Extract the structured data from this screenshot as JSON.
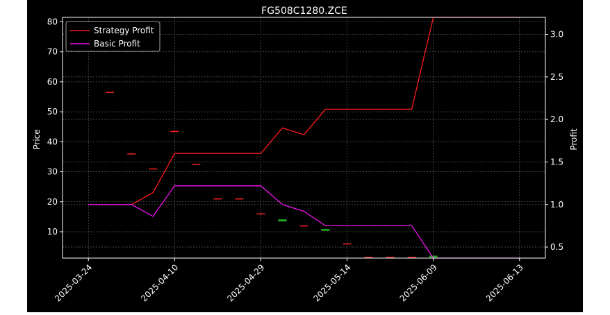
{
  "chart_data": {
    "type": "line",
    "title": "FG508C1280.ZCE",
    "ylabel_left": "Price",
    "ylabel_right": "Profit",
    "x_tick_labels": [
      "2025-03-24",
      "2025-04-10",
      "2025-04-29",
      "2025-05-14",
      "2025-06-09",
      "2025-06-13"
    ],
    "y_left_ticks": [
      10,
      20,
      30,
      40,
      50,
      60,
      70,
      80
    ],
    "y_right_ticks": [
      "0.5",
      "1.0",
      "1.5",
      "2.0",
      "2.5",
      "3.0"
    ],
    "y_left_range": [
      1.2,
      81.5
    ],
    "y_right_range": [
      0.37,
      3.2
    ],
    "grid": true,
    "legend_position": "upper-left",
    "candles": [
      {
        "x": 0,
        "open": 79,
        "close": 79,
        "color": "#ff2020"
      },
      {
        "x": 1,
        "open": 56.5,
        "close": 56.5,
        "color": "#ff2020"
      },
      {
        "x": 2,
        "open": 36,
        "close": 36,
        "color": "#ff2020"
      },
      {
        "x": 3,
        "open": 31,
        "close": 31,
        "color": "#ff2020"
      },
      {
        "x": 4,
        "open": 43.5,
        "close": 43.5,
        "color": "#ff2020"
      },
      {
        "x": 5,
        "open": 32.5,
        "close": 32.5,
        "color": "#ff2020"
      },
      {
        "x": 6,
        "open": 21,
        "close": 21,
        "color": "#ff2020"
      },
      {
        "x": 7,
        "open": 21,
        "close": 21,
        "color": "#ff2020"
      },
      {
        "x": 8,
        "open": 16,
        "close": 16,
        "color": "#ff2020"
      },
      {
        "x": 9,
        "open": 13.3,
        "close": 14,
        "color": "#22aa22"
      },
      {
        "x": 10,
        "open": 12,
        "close": 12,
        "color": "#ff2020"
      },
      {
        "x": 11,
        "open": 10.2,
        "close": 10.8,
        "color": "#22aa22"
      },
      {
        "x": 12,
        "open": 6,
        "close": 6,
        "color": "#ff2020"
      },
      {
        "x": 13,
        "open": 1.5,
        "close": 1.5,
        "color": "#ff2020"
      },
      {
        "x": 14,
        "open": 1.5,
        "close": 1.5,
        "color": "#ff2020"
      },
      {
        "x": 15,
        "open": 1.5,
        "close": 1.5,
        "color": "#ff2020"
      },
      {
        "x": 16,
        "open": 1.3,
        "close": 1.9,
        "color": "#22aa22"
      }
    ],
    "series": [
      {
        "name": "Strategy Profit",
        "color": "#ff1a1a",
        "x": [
          0,
          1,
          2,
          3,
          4,
          5,
          6,
          7,
          8,
          9,
          10,
          11,
          12,
          13,
          14,
          15,
          16,
          17,
          18,
          19,
          20
        ],
        "values": [
          1.0,
          1.0,
          1.0,
          1.14,
          1.6,
          1.6,
          1.6,
          1.6,
          1.6,
          1.9,
          1.82,
          2.12,
          2.12,
          2.12,
          2.12,
          2.12,
          3.2,
          3.2,
          3.2,
          3.2,
          3.2
        ]
      },
      {
        "name": "Basic Profit",
        "color": "#ee11ee",
        "x": [
          0,
          1,
          2,
          3,
          4,
          5,
          6,
          7,
          8,
          9,
          10,
          11,
          12,
          13,
          14,
          15,
          16,
          17,
          18,
          19,
          20
        ],
        "values": [
          1.0,
          1.0,
          1.0,
          0.86,
          1.22,
          1.22,
          1.22,
          1.22,
          1.22,
          1.0,
          0.92,
          0.75,
          0.75,
          0.75,
          0.75,
          0.75,
          0.37,
          0.37,
          0.37,
          0.37,
          0.37
        ]
      }
    ],
    "x_tick_positions": [
      0,
      4,
      8,
      12,
      16,
      20
    ],
    "x_range": [
      -1.2,
      21.2
    ]
  }
}
